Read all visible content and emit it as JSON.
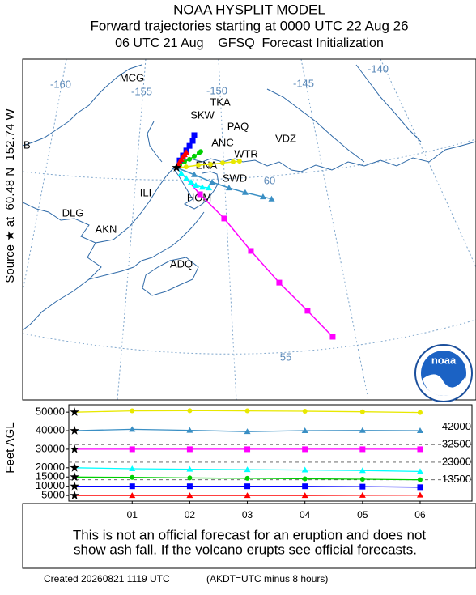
{
  "header": {
    "title": "NOAA HYSPLIT MODEL",
    "subtitle": "Forward trajectories starting at 0000 UTC 22 Aug 26",
    "init": "06 UTC 21 Aug    GFSQ  Forecast Initialization"
  },
  "chart_data": [
    {
      "type": "map",
      "side_label": "Source ★ at  60.48 N  152.74 W",
      "source": {
        "lat": 60.48,
        "lon": -152.74
      },
      "lon_labels": [
        -160,
        -155,
        -150,
        -145,
        -140
      ],
      "lat_labels": [
        60,
        55
      ],
      "places": [
        "MCG",
        "TKA",
        "SKW",
        "PAQ",
        "ANC",
        "VDZ",
        "WTR",
        "ENA",
        "SWD",
        "ILI",
        "HOM",
        "DLG",
        "AKN",
        "ADQ",
        "B"
      ],
      "logo_text": "noaa",
      "series": [
        {
          "color": "#e8e800",
          "marker": "circle",
          "lat": [
            60.48,
            60.5,
            60.55,
            60.57,
            60.61,
            60.64,
            60.66
          ],
          "lon": [
            -152.74,
            -152.2,
            -151.51,
            -150.83,
            -150.15,
            -149.56,
            -149.2
          ]
        },
        {
          "color": "#3a8fc4",
          "marker": "triangle",
          "lat": [
            60.48,
            60.28,
            60.07,
            59.91,
            59.78,
            59.66,
            59.6
          ],
          "lon": [
            -152.74,
            -151.74,
            -150.74,
            -149.79,
            -148.88,
            -147.88,
            -147.4
          ]
        },
        {
          "color": "#ff00ff",
          "marker": "square",
          "lat": [
            60.48,
            59.73,
            59.05,
            58.14,
            57.25,
            56.46,
            55.73
          ],
          "lon": [
            -152.74,
            -151.42,
            -150.06,
            -148.56,
            -146.97,
            -145.38,
            -143.97
          ]
        },
        {
          "color": "#00ffff",
          "marker": "triangle",
          "lat": [
            60.48,
            60.32,
            60.18,
            60.07,
            59.98,
            59.93,
            59.91
          ],
          "lon": [
            -152.74,
            -152.47,
            -152.19,
            -151.92,
            -151.65,
            -151.29,
            -150.92
          ]
        },
        {
          "color": "#00d000",
          "marker": "circle",
          "lat": [
            60.48,
            60.55,
            60.64,
            60.71,
            60.8,
            60.89,
            60.93
          ],
          "lon": [
            -152.74,
            -152.56,
            -152.29,
            -152.01,
            -151.74,
            -151.47,
            -151.38
          ]
        },
        {
          "color": "#0000ff",
          "marker": "square",
          "lat": [
            60.48,
            60.68,
            60.82,
            60.96,
            61.09,
            61.23,
            61.39
          ],
          "lon": [
            -152.74,
            -152.56,
            -152.38,
            -152.19,
            -152.01,
            -151.83,
            -151.74
          ]
        },
        {
          "color": "#ff0000",
          "marker": "triangle",
          "lat": [
            60.48,
            60.55,
            60.64,
            60.71,
            60.78,
            60.84,
            60.91
          ],
          "lon": [
            -152.74,
            -152.65,
            -152.56,
            -152.47,
            -152.38,
            -152.29,
            -152.19
          ]
        }
      ]
    },
    {
      "type": "line",
      "ylabel": "Feet AGL",
      "x": [
        0,
        1,
        2,
        3,
        4,
        5,
        6
      ],
      "xlim": [
        -0.1,
        6.9
      ],
      "xticks": [
        {
          "value": 1,
          "label": "01"
        },
        {
          "value": 2,
          "label": "02"
        },
        {
          "value": 3,
          "label": "03"
        },
        {
          "value": 4,
          "label": "04"
        },
        {
          "value": 5,
          "label": "05"
        },
        {
          "value": 6,
          "label": "06"
        }
      ],
      "ylim": [
        2000,
        54000
      ],
      "yticks": [
        50000,
        40000,
        30000,
        20000,
        15000,
        10000,
        5000
      ],
      "right_ticks": [
        42000,
        32500,
        23000,
        13500
      ],
      "series": [
        {
          "color": "#e8e800",
          "marker": "circle",
          "values": [
            50000,
            50700,
            50800,
            50700,
            50500,
            50200,
            49800
          ]
        },
        {
          "color": "#3a8fc4",
          "marker": "triangle",
          "values": [
            40000,
            40700,
            40200,
            39500,
            40000,
            40100,
            40000
          ]
        },
        {
          "color": "#ff00ff",
          "marker": "square",
          "values": [
            30000,
            30000,
            30000,
            30000,
            30000,
            30000,
            30000
          ]
        },
        {
          "color": "#00ffff",
          "marker": "triangle",
          "values": [
            20000,
            19500,
            19200,
            19000,
            18800,
            18500,
            18000
          ]
        },
        {
          "color": "#00d000",
          "marker": "circle",
          "values": [
            15000,
            14800,
            14500,
            14300,
            14000,
            13800,
            13500
          ]
        },
        {
          "color": "#0000ff",
          "marker": "square",
          "values": [
            10000,
            10000,
            10000,
            10000,
            10000,
            9800,
            9500
          ]
        },
        {
          "color": "#ff0000",
          "marker": "triangle",
          "values": [
            5000,
            5000,
            5000,
            5000,
            5000,
            5100,
            5200
          ]
        }
      ]
    }
  ],
  "footer": {
    "disclaimer_1": "This is not an official forecast for an eruption and does not",
    "disclaimer_2": "show ash fall. If the volcano erupts see official forecasts.",
    "created": "Created 20260821 1119 UTC",
    "timezone": "(AKDT=UTC minus 8 hours)"
  }
}
